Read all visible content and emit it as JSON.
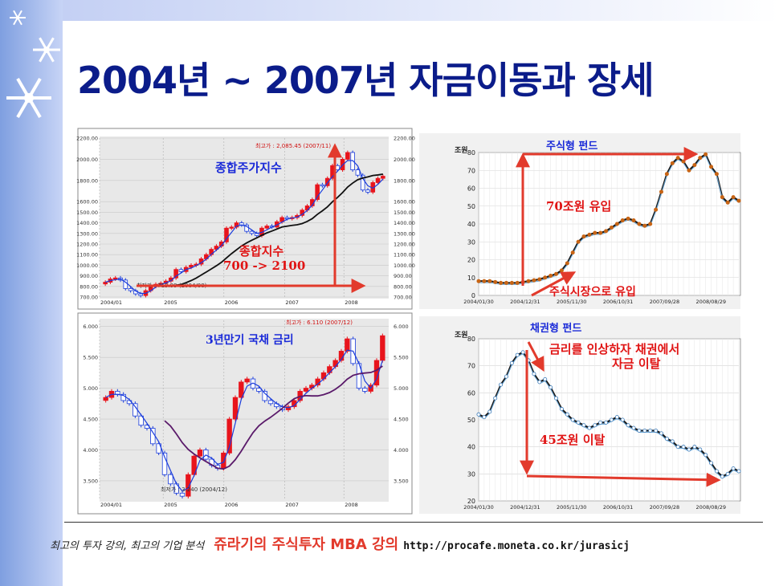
{
  "slide": {
    "title": "2004년 ~ 2007년 자금이동과 장세",
    "footer_left": "최고의 투자 강의, 최고의 기업 분석",
    "footer_brand": "쥬라기의 주식투자 MBA 강의",
    "footer_url": "http://procafe.moneta.co.kr/jurasicj"
  },
  "colors": {
    "title": "#0b1c8a",
    "accent_red": "#e23a2c",
    "candle_up": "#e8141c",
    "candle_down": "#1a3cdc",
    "fund_line": "#1a1a1a",
    "fund_marker": "#c86414",
    "sidebar": "#9db3ea"
  },
  "chart_data": [
    {
      "id": "kospi",
      "type": "candlestick",
      "annotation": "종합주가지수",
      "ylim": [
        700,
        2200
      ],
      "yticks": [
        "2200.00",
        "2000.00",
        "1800.00",
        "1600.00",
        "1500.00",
        "1400.00",
        "1300.00",
        "1200.00",
        "1100.00",
        "1000.00",
        "900.00",
        "800.00",
        "700.00"
      ],
      "xticks": [
        "2004/01",
        "2005",
        "2006",
        "2007",
        "2008"
      ],
      "high_label": "최고가 : 2,085.45 (2007/11)",
      "low_label": "최저가 : 713.99 (2004/08)",
      "note_line1": "종합지수",
      "note_line2": "700 -> 2100",
      "closes": [
        840,
        870,
        880,
        860,
        780,
        760,
        730,
        714,
        760,
        800,
        820,
        830,
        850,
        880,
        960,
        940,
        980,
        1000,
        1010,
        1060,
        1100,
        1150,
        1180,
        1220,
        1350,
        1360,
        1400,
        1380,
        1320,
        1300,
        1280,
        1350,
        1370,
        1360,
        1410,
        1450,
        1440,
        1450,
        1470,
        1520,
        1560,
        1620,
        1760,
        1750,
        1820,
        1940,
        1900,
        2000,
        2064,
        1900,
        1850,
        1710,
        1690,
        1780,
        1820,
        1840
      ]
    },
    {
      "id": "bond",
      "type": "candlestick",
      "annotation": "3년만기 국채 금리",
      "ylim": [
        3.2,
        6.1
      ],
      "yticks": [
        "6.000",
        "5.500",
        "5.000",
        "4.500",
        "4.000",
        "3.500"
      ],
      "xticks": [
        "2004/01",
        "2005",
        "2006",
        "2007",
        "2008"
      ],
      "high_label": "최고가 : 6.110 (2007/12)",
      "low_label": "최저가 : 3.240 (2004/12)",
      "closes": [
        4.85,
        4.95,
        4.9,
        4.8,
        4.75,
        4.55,
        4.4,
        4.35,
        4.1,
        3.95,
        3.6,
        3.45,
        3.3,
        3.25,
        3.6,
        3.9,
        4.0,
        3.85,
        3.75,
        3.7,
        3.95,
        4.5,
        4.85,
        5.1,
        5.15,
        5.0,
        4.95,
        4.8,
        4.75,
        4.7,
        4.65,
        4.7,
        4.8,
        4.95,
        5.0,
        5.05,
        5.15,
        5.25,
        5.35,
        5.45,
        5.6,
        5.8,
        5.4,
        5.0,
        4.95,
        5.05,
        5.45,
        5.85
      ]
    },
    {
      "id": "equity_fund",
      "type": "line",
      "title": "주식형 펀드",
      "yunit": "조원",
      "ylim": [
        0,
        80
      ],
      "yticks": [
        "80",
        "70",
        "60",
        "50",
        "40",
        "30",
        "20",
        "10",
        "0"
      ],
      "xticks": [
        "2004/01/30",
        "2004/12/31",
        "2005/11/30",
        "2006/10/31",
        "2007/09/28",
        "2008/08/29"
      ],
      "note_inflow": "70조원 유입",
      "note_market": "주식시장으로 유입",
      "values": [
        8,
        8,
        8,
        7.5,
        7,
        7,
        7,
        7,
        7.5,
        8,
        8.5,
        9,
        10,
        11,
        12,
        14,
        18,
        24,
        30,
        33,
        34,
        35,
        35,
        36,
        38,
        40,
        42,
        43,
        42,
        40,
        39,
        40,
        48,
        58,
        68,
        74,
        77,
        75,
        70,
        73,
        77,
        79,
        72,
        68,
        55,
        52,
        55,
        53
      ]
    },
    {
      "id": "bond_fund",
      "type": "line",
      "title": "채권형 펀드",
      "yunit": "조원",
      "ylim": [
        20,
        80
      ],
      "yticks": [
        "80",
        "70",
        "60",
        "50",
        "40",
        "30",
        "20"
      ],
      "xticks": [
        "2004/01/30",
        "2004/12/31",
        "2005/11/30",
        "2006/10/31",
        "2007/09/28",
        "2008/08/29"
      ],
      "note_line1": "금리를 인상하자 채권에서",
      "note_line2": "자금 이탈",
      "note_outflow": "45조원 이탈",
      "values": [
        52,
        51,
        53,
        58,
        63,
        66,
        71,
        74,
        75,
        72,
        67,
        64,
        65,
        62,
        58,
        54,
        52,
        50,
        49,
        48,
        47,
        48,
        49,
        49,
        50,
        51,
        50,
        48,
        47,
        46,
        46,
        46,
        46,
        45,
        43,
        42,
        40,
        40,
        39,
        40,
        39,
        37,
        34,
        31,
        29,
        30,
        32,
        31
      ]
    }
  ]
}
